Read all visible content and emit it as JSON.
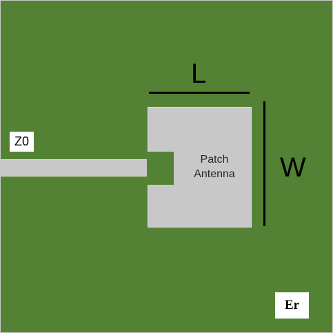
{
  "diagram": {
    "patch": {
      "line1": "Patch",
      "line2": "Antenna"
    },
    "dimensions": {
      "length_label": "L",
      "width_label": "W"
    },
    "feed": {
      "impedance_label": "Z0"
    },
    "substrate": {
      "permittivity_label": "Er"
    },
    "colors": {
      "substrate": "#548235",
      "metal": "#c8c8c8",
      "dimension_lines": "#000000",
      "label_box": "#ffffff"
    }
  }
}
